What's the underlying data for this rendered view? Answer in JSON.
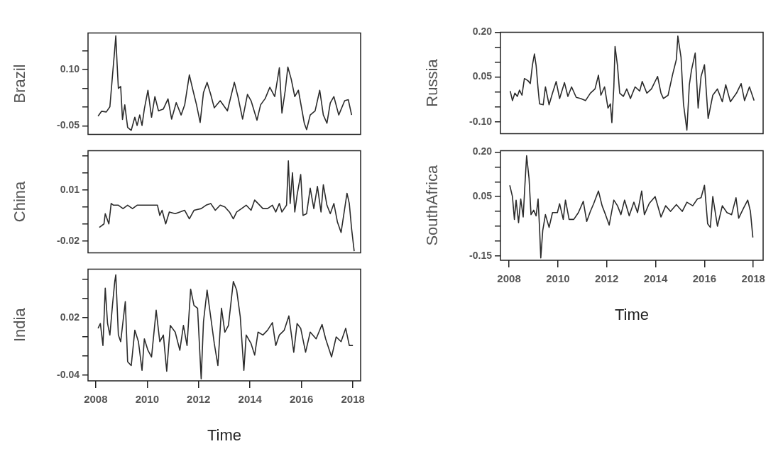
{
  "chart_data": [
    {
      "type": "line",
      "ylabel": "Brazil",
      "tick_labels": "y",
      "xlim": [
        2007.7,
        2018.3
      ],
      "xticks": [
        2008,
        2010,
        2012,
        2014,
        2016,
        2018
      ],
      "ylim": [
        -0.073,
        0.198
      ],
      "yticks": [
        {
          "value": -0.05,
          "label": "-0.05"
        },
        {
          "value": 0,
          "label": null
        },
        {
          "value": 0.05,
          "label": null
        },
        {
          "value": 0.1,
          "label": "0.10"
        },
        {
          "value": 0.15,
          "label": null
        }
      ],
      "x": [
        2008.09,
        2008.23,
        2008.41,
        2008.55,
        2008.65,
        2008.74,
        2008.78,
        2008.83,
        2008.88,
        2008.97,
        2009.04,
        2009.13,
        2009.24,
        2009.38,
        2009.52,
        2009.61,
        2009.71,
        2009.8,
        2009.89,
        2010.03,
        2010.17,
        2010.3,
        2010.44,
        2010.63,
        2010.81,
        2010.95,
        2011.13,
        2011.32,
        2011.46,
        2011.64,
        2011.78,
        2011.92,
        2012.06,
        2012.19,
        2012.33,
        2012.47,
        2012.61,
        2012.84,
        2013.12,
        2013.39,
        2013.53,
        2013.71,
        2013.9,
        2014.04,
        2014.27,
        2014.41,
        2014.59,
        2014.77,
        2014.96,
        2015.14,
        2015.24,
        2015.37,
        2015.47,
        2015.6,
        2015.74,
        2015.88,
        2016.11,
        2016.2,
        2016.34,
        2016.53,
        2016.71,
        2016.85,
        2016.99,
        2017.12,
        2017.26,
        2017.45,
        2017.68,
        2017.82,
        2017.95
      ],
      "series": [
        {
          "color": "#2b2b2b",
          "values": [
            -0.024,
            -0.011,
            -0.013,
            0.001,
            0.083,
            0.155,
            0.19,
            0.116,
            0.05,
            0.055,
            -0.033,
            0.006,
            -0.054,
            -0.062,
            -0.027,
            -0.049,
            -0.021,
            -0.049,
            -0.005,
            0.045,
            -0.027,
            0.028,
            -0.01,
            -0.005,
            0.022,
            -0.032,
            0.012,
            -0.021,
            0.006,
            0.086,
            0.045,
            0.006,
            -0.041,
            0.039,
            0.066,
            0.034,
            -0.002,
            0.017,
            -0.01,
            0.066,
            0.028,
            -0.032,
            0.034,
            0.017,
            -0.035,
            0.006,
            0.023,
            0.053,
            0.028,
            0.105,
            -0.016,
            0.045,
            0.107,
            0.075,
            0.028,
            0.045,
            -0.043,
            -0.06,
            -0.021,
            -0.01,
            0.045,
            -0.021,
            -0.043,
            0.011,
            0.028,
            -0.021,
            0.017,
            0.02,
            -0.021
          ]
        }
      ]
    },
    {
      "type": "line",
      "ylabel": "China",
      "tick_labels": "y",
      "xlim": [
        2007.7,
        2018.3
      ],
      "xticks": [
        2008,
        2010,
        2012,
        2014,
        2016,
        2018
      ],
      "ylim": [
        -0.027,
        0.033
      ],
      "yticks": [
        {
          "value": -0.02,
          "label": "-0.02"
        },
        {
          "value": -0.01,
          "label": null
        },
        {
          "value": 0,
          "label": null
        },
        {
          "value": 0.01,
          "label": "0.01"
        },
        {
          "value": 0.02,
          "label": null
        },
        {
          "value": 0.03,
          "label": null
        }
      ],
      "x": [
        2008.14,
        2008.32,
        2008.37,
        2008.51,
        2008.6,
        2008.69,
        2008.88,
        2009.06,
        2009.24,
        2009.43,
        2009.61,
        2009.8,
        2010.17,
        2010.4,
        2010.49,
        2010.58,
        2010.72,
        2010.86,
        2011.09,
        2011.27,
        2011.46,
        2011.64,
        2011.82,
        2012.1,
        2012.29,
        2012.47,
        2012.65,
        2012.84,
        2013.02,
        2013.2,
        2013.35,
        2013.48,
        2013.67,
        2013.85,
        2014.04,
        2014.18,
        2014.31,
        2014.5,
        2014.68,
        2014.87,
        2015.0,
        2015.14,
        2015.24,
        2015.42,
        2015.49,
        2015.56,
        2015.65,
        2015.74,
        2015.83,
        2015.97,
        2016.06,
        2016.2,
        2016.34,
        2016.48,
        2016.62,
        2016.76,
        2016.85,
        2016.99,
        2017.12,
        2017.26,
        2017.4,
        2017.54,
        2017.68,
        2017.77,
        2017.86,
        2017.95,
        2018.05
      ],
      "series": [
        {
          "color": "#2b2b2b",
          "values": [
            -0.012,
            -0.01,
            -0.004,
            -0.01,
            0.002,
            0.001,
            0.001,
            -0.001,
            0.001,
            -0.001,
            0.001,
            0.001,
            0.001,
            0.001,
            -0.005,
            -0.002,
            -0.01,
            -0.003,
            -0.004,
            -0.003,
            -0.002,
            -0.007,
            -0.002,
            -0.001,
            0.001,
            0.002,
            -0.002,
            0.001,
            0.0,
            -0.003,
            -0.007,
            -0.003,
            -0.001,
            0.001,
            -0.002,
            0.004,
            0.002,
            -0.001,
            -0.001,
            0.001,
            -0.003,
            0.002,
            -0.003,
            0.001,
            0.027,
            0.002,
            0.02,
            -0.003,
            0.007,
            0.019,
            -0.005,
            -0.004,
            0.011,
            -0.001,
            0.012,
            -0.003,
            0.013,
            0.001,
            -0.004,
            0.002,
            -0.009,
            -0.015,
            -0.001,
            0.008,
            0.002,
            -0.013,
            -0.026
          ]
        }
      ]
    },
    {
      "type": "line",
      "ylabel": "India",
      "xlabel": "Time",
      "xlim": [
        2007.7,
        2018.3
      ],
      "xticks": [
        2008,
        2010,
        2012,
        2014,
        2016,
        2018
      ],
      "ylim": [
        -0.046,
        0.071
      ],
      "yticks": [
        {
          "value": -0.04,
          "label": "-0.04"
        },
        {
          "value": -0.02,
          "label": null
        },
        {
          "value": 0,
          "label": null
        },
        {
          "value": 0.02,
          "label": "0.02"
        },
        {
          "value": 0.04,
          "label": null
        },
        {
          "value": 0.06,
          "label": null
        }
      ],
      "x": [
        2008.09,
        2008.18,
        2008.28,
        2008.37,
        2008.46,
        2008.55,
        2008.65,
        2008.74,
        2008.78,
        2008.88,
        2008.97,
        2009.15,
        2009.24,
        2009.38,
        2009.52,
        2009.66,
        2009.8,
        2009.89,
        2010.03,
        2010.17,
        2010.35,
        2010.49,
        2010.63,
        2010.76,
        2010.9,
        2011.09,
        2011.27,
        2011.41,
        2011.55,
        2011.69,
        2011.82,
        2011.96,
        2012.1,
        2012.19,
        2012.33,
        2012.47,
        2012.61,
        2012.75,
        2012.89,
        2013.02,
        2013.16,
        2013.35,
        2013.48,
        2013.62,
        2013.76,
        2013.85,
        2014.04,
        2014.18,
        2014.31,
        2014.5,
        2014.68,
        2014.87,
        2015.0,
        2015.14,
        2015.33,
        2015.51,
        2015.7,
        2015.83,
        2015.97,
        2016.16,
        2016.34,
        2016.57,
        2016.8,
        2016.94,
        2017.17,
        2017.35,
        2017.54,
        2017.72,
        2017.86,
        2018.0
      ],
      "series": [
        {
          "color": "#2b2b2b",
          "values": [
            0.009,
            0.014,
            -0.009,
            0.051,
            0.014,
            0.002,
            0.033,
            0.058,
            0.065,
            0.002,
            -0.005,
            0.037,
            -0.026,
            -0.03,
            0.007,
            -0.005,
            -0.035,
            -0.002,
            -0.014,
            -0.021,
            0.028,
            -0.005,
            0.002,
            -0.036,
            0.012,
            0.005,
            -0.014,
            0.012,
            -0.009,
            0.05,
            0.033,
            0.03,
            -0.044,
            0.016,
            0.049,
            0.021,
            -0.007,
            -0.03,
            0.03,
            0.005,
            0.012,
            0.058,
            0.049,
            0.021,
            -0.035,
            0.002,
            -0.007,
            -0.019,
            0.005,
            0.002,
            0.007,
            0.015,
            -0.009,
            0.002,
            0.007,
            0.022,
            -0.016,
            0.014,
            0.009,
            -0.016,
            0.005,
            -0.002,
            0.013,
            -0.002,
            -0.021,
            0.0,
            -0.005,
            0.009,
            -0.009,
            -0.009
          ]
        }
      ]
    },
    {
      "type": "line",
      "ylabel": "Russia",
      "tick_labels": "y",
      "xlim": [
        2007.65,
        2018.4
      ],
      "xticks": [
        2008,
        2010,
        2012,
        2014,
        2016,
        2018
      ],
      "ylim": [
        -0.14,
        0.2
      ],
      "yticks": [
        {
          "value": -0.1,
          "label": "-0.10"
        },
        {
          "value": -0.05,
          "label": null
        },
        {
          "value": 0,
          "label": null
        },
        {
          "value": 0.05,
          "label": "0.05"
        },
        {
          "value": 0.1,
          "label": null
        },
        {
          "value": 0.15,
          "label": null
        },
        {
          "value": 0.2,
          "label": "0.20"
        }
      ],
      "x": [
        2008.05,
        2008.14,
        2008.24,
        2008.34,
        2008.43,
        2008.53,
        2008.63,
        2008.77,
        2008.87,
        2008.96,
        2009.04,
        2009.11,
        2009.19,
        2009.25,
        2009.4,
        2009.49,
        2009.64,
        2009.78,
        2009.93,
        2010.07,
        2010.27,
        2010.41,
        2010.56,
        2010.75,
        2010.94,
        2011.13,
        2011.33,
        2011.52,
        2011.66,
        2011.76,
        2011.91,
        2012.05,
        2012.15,
        2012.21,
        2012.29,
        2012.34,
        2012.44,
        2012.53,
        2012.68,
        2012.82,
        2012.97,
        2013.16,
        2013.35,
        2013.45,
        2013.64,
        2013.83,
        2014.08,
        2014.22,
        2014.32,
        2014.51,
        2014.7,
        2014.85,
        2014.91,
        2015.04,
        2015.14,
        2015.28,
        2015.38,
        2015.47,
        2015.62,
        2015.74,
        2015.86,
        2016.0,
        2016.15,
        2016.34,
        2016.53,
        2016.73,
        2016.87,
        2017.06,
        2017.31,
        2017.5,
        2017.64,
        2017.84,
        2018.03
      ],
      "series": [
        {
          "color": "#2b2b2b",
          "values": [
            0.003,
            -0.029,
            -0.004,
            -0.015,
            0.006,
            -0.011,
            0.045,
            0.038,
            0.028,
            0.091,
            0.127,
            0.088,
            0.01,
            -0.04,
            -0.043,
            0.017,
            -0.043,
            -0.004,
            0.035,
            -0.022,
            0.031,
            -0.015,
            0.017,
            -0.018,
            -0.022,
            -0.029,
            -0.004,
            0.01,
            0.056,
            -0.011,
            0.017,
            -0.054,
            -0.04,
            -0.103,
            0.017,
            0.152,
            0.088,
            -0.004,
            -0.015,
            0.01,
            -0.022,
            0.017,
            0.003,
            0.035,
            -0.004,
            0.01,
            0.052,
            -0.004,
            -0.022,
            -0.011,
            0.06,
            0.109,
            0.187,
            0.116,
            -0.04,
            -0.128,
            0.024,
            0.074,
            0.13,
            -0.054,
            0.052,
            0.091,
            -0.089,
            -0.011,
            0.01,
            -0.033,
            0.024,
            -0.033,
            -0.004,
            0.028,
            -0.029,
            0.017,
            -0.029
          ]
        }
      ]
    },
    {
      "type": "line",
      "ylabel": "SouthAfrica",
      "xlabel": "Time",
      "xlim": [
        2007.65,
        2018.4
      ],
      "xticks": [
        2008,
        2010,
        2012,
        2014,
        2016,
        2018
      ],
      "ylim": [
        -0.165,
        0.205
      ],
      "yticks": [
        {
          "value": -0.15,
          "label": "-0.15"
        },
        {
          "value": -0.1,
          "label": null
        },
        {
          "value": -0.05,
          "label": null
        },
        {
          "value": 0,
          "label": null
        },
        {
          "value": 0.05,
          "label": "0.05"
        },
        {
          "value": 0.1,
          "label": null
        },
        {
          "value": 0.15,
          "label": null
        },
        {
          "value": 0.2,
          "label": "0.20"
        }
      ],
      "x": [
        2008.03,
        2008.14,
        2008.22,
        2008.29,
        2008.39,
        2008.48,
        2008.58,
        2008.65,
        2008.72,
        2008.82,
        2008.9,
        2009.01,
        2009.11,
        2009.19,
        2009.25,
        2009.3,
        2009.38,
        2009.49,
        2009.64,
        2009.78,
        2009.98,
        2010.07,
        2010.22,
        2010.31,
        2010.46,
        2010.65,
        2010.84,
        2011.04,
        2011.18,
        2011.33,
        2011.47,
        2011.66,
        2011.81,
        2011.95,
        2012.1,
        2012.29,
        2012.44,
        2012.58,
        2012.73,
        2012.92,
        2013.11,
        2013.26,
        2013.43,
        2013.54,
        2013.74,
        2013.98,
        2014.22,
        2014.41,
        2014.61,
        2014.85,
        2015.09,
        2015.28,
        2015.52,
        2015.71,
        2015.86,
        2016.0,
        2016.13,
        2016.24,
        2016.34,
        2016.53,
        2016.73,
        2016.92,
        2017.11,
        2017.29,
        2017.4,
        2017.6,
        2017.77,
        2017.88,
        2017.98
      ],
      "series": [
        {
          "color": "#2b2b2b",
          "values": [
            0.088,
            0.05,
            -0.027,
            0.038,
            -0.038,
            0.042,
            -0.019,
            0.088,
            0.188,
            0.111,
            -0.011,
            0.004,
            -0.015,
            0.042,
            -0.057,
            -0.157,
            -0.065,
            -0.011,
            -0.054,
            -0.004,
            -0.004,
            0.026,
            -0.027,
            0.038,
            -0.027,
            -0.027,
            -0.004,
            0.034,
            -0.034,
            0.0,
            0.027,
            0.069,
            0.019,
            -0.011,
            -0.046,
            0.038,
            0.019,
            -0.011,
            0.038,
            -0.015,
            0.031,
            -0.004,
            0.069,
            -0.011,
            0.027,
            0.05,
            -0.019,
            0.019,
            0.0,
            0.023,
            0.0,
            0.031,
            0.019,
            0.042,
            0.046,
            0.088,
            -0.042,
            -0.054,
            0.05,
            -0.05,
            0.019,
            -0.004,
            -0.011,
            0.046,
            -0.023,
            0.011,
            0.038,
            0.0,
            -0.088
          ]
        }
      ]
    }
  ]
}
